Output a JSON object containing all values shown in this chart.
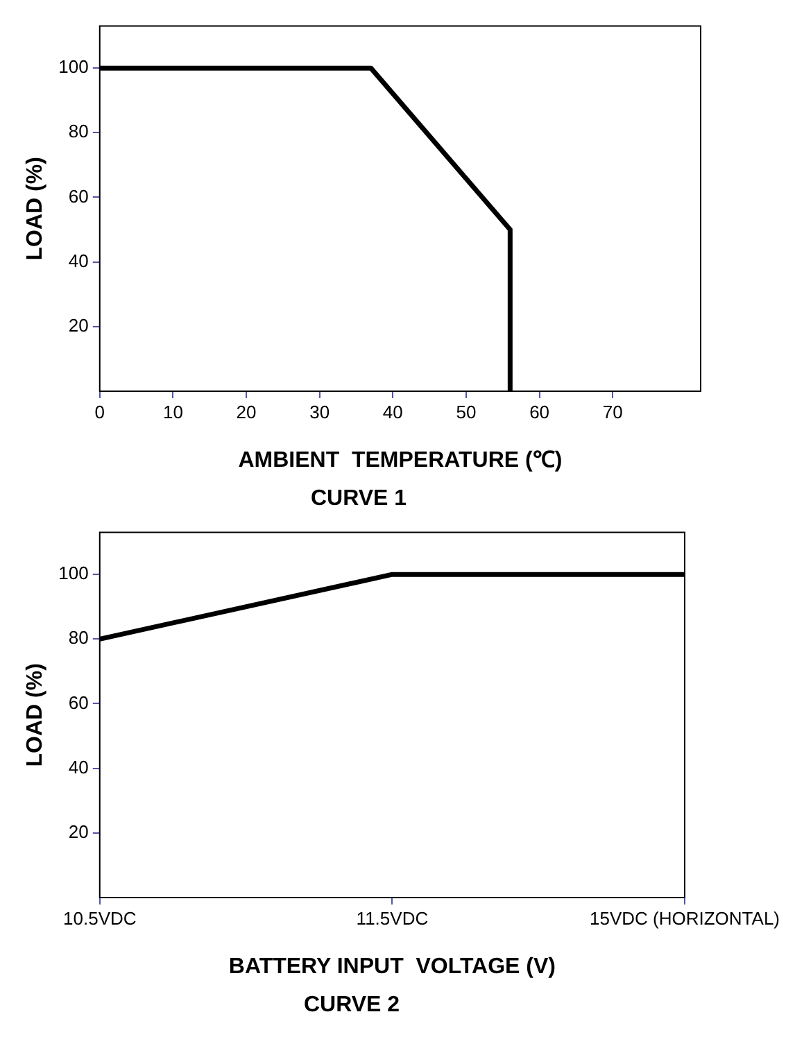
{
  "chart_data": [
    {
      "type": "line",
      "title": "CURVE 1",
      "xlabel": "AMBIENT  TEMPERATURE (℃)",
      "ylabel": "LOAD (%)",
      "x": [
        0,
        37,
        56,
        56
      ],
      "series": [
        {
          "color": "#000000",
          "values": [
            100,
            100,
            50,
            0
          ]
        }
      ],
      "xlim": [
        0,
        82
      ],
      "xticks": [
        0,
        10,
        20,
        30,
        40,
        50,
        60,
        70
      ],
      "ylim": [
        0,
        113
      ],
      "yticks": [
        20,
        40,
        60,
        80,
        100
      ],
      "grid": false,
      "legend": false,
      "marker": "none",
      "line_style": "solid"
    },
    {
      "type": "line",
      "title": "CURVE 2",
      "xlabel": "BATTERY INPUT  VOLTAGE (V)",
      "ylabel": "LOAD (%)",
      "categories": [
        "10.5VDC",
        "11.5VDC",
        "15VDC (HORIZONTAL)"
      ],
      "series": [
        {
          "color": "#000000",
          "values": [
            80,
            100,
            100
          ]
        }
      ],
      "ylim": [
        0,
        113
      ],
      "yticks": [
        20,
        40,
        60,
        80,
        100
      ],
      "grid": false,
      "legend": false,
      "marker": "none",
      "line_style": "solid"
    }
  ]
}
